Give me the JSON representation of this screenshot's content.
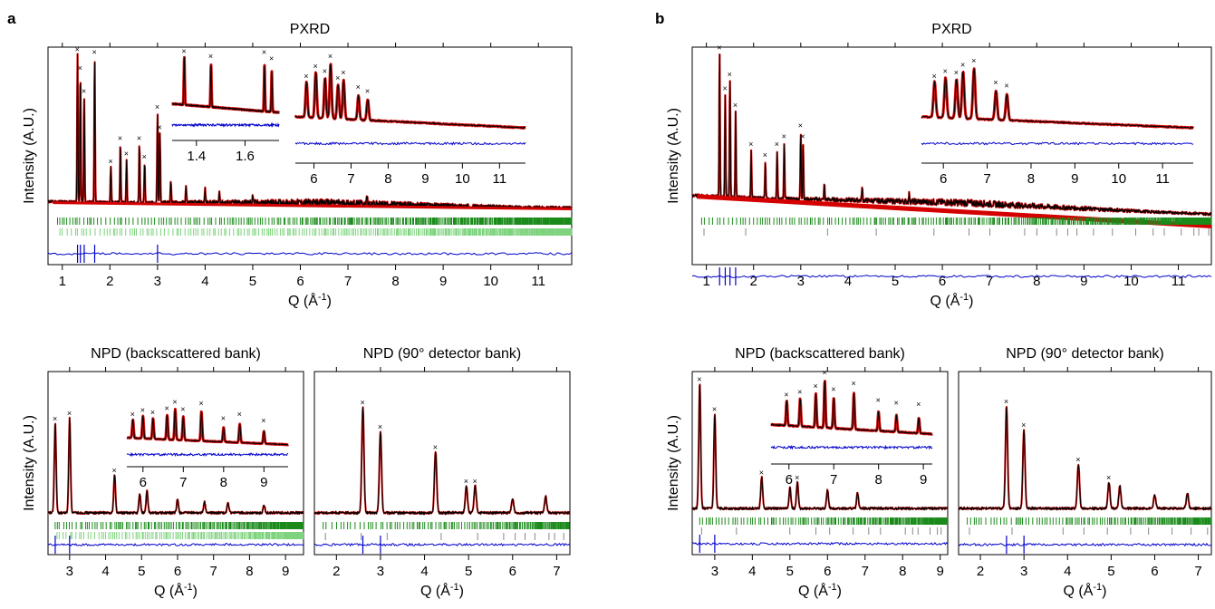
{
  "figure": {
    "panel_letters": [
      "a",
      "b"
    ]
  },
  "colors": {
    "observed": "#d40000",
    "calculated": "#000000",
    "difference": "#0000cc",
    "tick_phase1": "#1a8a1a",
    "tick_phase2": "#7ed37e"
  },
  "chart_data": [
    {
      "id": "a-pxrd",
      "type": "line",
      "title": "PXRD",
      "xlabel": "Q (Å",
      "xlabel_sup": "-1",
      "xlabel_end": ")",
      "ylabel": "Intensity (A.U.)",
      "xlim": [
        0.7,
        11.7
      ],
      "xticks": [
        1,
        2,
        3,
        4,
        5,
        6,
        7,
        8,
        9,
        10,
        11
      ],
      "series": [],
      "peaks": [
        [
          1.32,
          0.95
        ],
        [
          1.38,
          0.83
        ],
        [
          1.46,
          0.68
        ],
        [
          1.68,
          0.93
        ],
        [
          2.02,
          0.23
        ],
        [
          2.22,
          0.38
        ],
        [
          2.35,
          0.28
        ],
        [
          2.62,
          0.38
        ],
        [
          2.73,
          0.26
        ],
        [
          3.0,
          0.58
        ],
        [
          3.05,
          0.45
        ],
        [
          3.28,
          0.15
        ],
        [
          3.6,
          0.1
        ],
        [
          4.0,
          0.09
        ],
        [
          4.3,
          0.07
        ],
        [
          5.0,
          0.05
        ],
        [
          7.4,
          0.05
        ]
      ],
      "background": {
        "start": 0.06,
        "end": 0.02
      },
      "insets": [
        {
          "xlim": [
            1.3,
            1.74
          ],
          "xticks": [
            1.4,
            1.6
          ],
          "peaks": [
            [
              1.35,
              0.92
            ],
            [
              1.46,
              0.82
            ],
            [
              1.68,
              0.9
            ],
            [
              1.71,
              0.78
            ]
          ]
        },
        {
          "xlim": [
            5.5,
            11.7
          ],
          "xticks": [
            6,
            7,
            8,
            9,
            10,
            11
          ],
          "peaks": [
            [
              5.8,
              0.55
            ],
            [
              6.05,
              0.7
            ],
            [
              6.3,
              0.62
            ],
            [
              6.45,
              0.85
            ],
            [
              6.65,
              0.52
            ],
            [
              6.8,
              0.6
            ],
            [
              7.2,
              0.38
            ],
            [
              7.45,
              0.32
            ]
          ]
        }
      ]
    },
    {
      "id": "a-npd-back",
      "type": "line",
      "title": "NPD (backscattered bank)",
      "xlabel": "Q (Å",
      "xlabel_sup": "-1",
      "xlabel_end": ")",
      "ylabel": "Intensity (A.U.)",
      "xlim": [
        2.4,
        9.5
      ],
      "xticks": [
        3,
        4,
        5,
        6,
        7,
        8,
        9
      ],
      "series": [],
      "peaks": [
        [
          2.6,
          0.66
        ],
        [
          3.0,
          0.7
        ],
        [
          4.25,
          0.28
        ],
        [
          4.95,
          0.14
        ],
        [
          5.15,
          0.16
        ],
        [
          6.0,
          0.1
        ],
        [
          6.75,
          0.08
        ],
        [
          7.4,
          0.07
        ],
        [
          8.4,
          0.06
        ]
      ],
      "background": {
        "start": 0.02,
        "end": 0.02
      },
      "insets": [
        {
          "xlim": [
            5.6,
            9.6
          ],
          "xticks": [
            6,
            7,
            8,
            9
          ],
          "peaks": [
            [
              5.75,
              0.45
            ],
            [
              6.0,
              0.55
            ],
            [
              6.25,
              0.5
            ],
            [
              6.6,
              0.6
            ],
            [
              6.8,
              0.75
            ],
            [
              7.0,
              0.58
            ],
            [
              7.45,
              0.72
            ],
            [
              8.0,
              0.35
            ],
            [
              8.4,
              0.45
            ],
            [
              9.0,
              0.3
            ]
          ]
        }
      ]
    },
    {
      "id": "a-npd-90",
      "type": "line",
      "title": "NPD (90° detector bank)",
      "xlabel": "Q (Å",
      "xlabel_sup": "-1",
      "xlabel_end": ")",
      "ylabel": "",
      "xlim": [
        1.5,
        7.3
      ],
      "xticks": [
        2,
        3,
        4,
        5,
        6,
        7
      ],
      "series": [],
      "peaks": [
        [
          2.6,
          0.78
        ],
        [
          3.0,
          0.6
        ],
        [
          4.25,
          0.45
        ],
        [
          4.95,
          0.2
        ],
        [
          5.15,
          0.2
        ],
        [
          6.0,
          0.1
        ],
        [
          6.75,
          0.12
        ]
      ],
      "background": {
        "start": 0.02,
        "end": 0.02
      },
      "insets": []
    },
    {
      "id": "b-pxrd",
      "type": "line",
      "title": "PXRD",
      "xlabel": "Q (Å",
      "xlabel_sup": "-1",
      "xlabel_end": ")",
      "ylabel": "Intensity (A.U.)",
      "xlim": [
        0.7,
        11.7
      ],
      "xticks": [
        1,
        2,
        3,
        4,
        5,
        6,
        7,
        8,
        9,
        10,
        11
      ],
      "series": [],
      "peaks": [
        [
          1.28,
          0.92
        ],
        [
          1.4,
          0.66
        ],
        [
          1.5,
          0.75
        ],
        [
          1.62,
          0.55
        ],
        [
          1.95,
          0.3
        ],
        [
          2.25,
          0.23
        ],
        [
          2.5,
          0.3
        ],
        [
          2.65,
          0.35
        ],
        [
          3.0,
          0.42
        ],
        [
          3.05,
          0.35
        ],
        [
          3.5,
          0.1
        ],
        [
          4.3,
          0.08
        ],
        [
          5.3,
          0.05
        ]
      ],
      "background": {
        "start": 0.1,
        "end": -0.02
      },
      "insets": [
        {
          "xlim": [
            5.5,
            11.7
          ],
          "xticks": [
            6,
            7,
            8,
            9,
            10,
            11
          ],
          "peaks": [
            [
              5.8,
              0.55
            ],
            [
              6.05,
              0.62
            ],
            [
              6.3,
              0.6
            ],
            [
              6.45,
              0.72
            ],
            [
              6.7,
              0.78
            ],
            [
              7.2,
              0.45
            ],
            [
              7.45,
              0.4
            ]
          ]
        }
      ]
    },
    {
      "id": "b-npd-back",
      "type": "line",
      "title": "NPD (backscattered bank)",
      "xlabel": "Q (Å",
      "xlabel_sup": "-1",
      "xlabel_end": ")",
      "ylabel": "Intensity (A.U.)",
      "xlim": [
        2.4,
        9.2
      ],
      "xticks": [
        3,
        4,
        5,
        6,
        7,
        8,
        9
      ],
      "series": [],
      "peaks": [
        [
          2.6,
          0.95
        ],
        [
          3.0,
          0.72
        ],
        [
          4.25,
          0.24
        ],
        [
          5.0,
          0.16
        ],
        [
          5.2,
          0.2
        ],
        [
          6.0,
          0.14
        ],
        [
          6.8,
          0.12
        ]
      ],
      "background": {
        "start": 0.02,
        "end": 0.02
      },
      "insets": [
        {
          "xlim": [
            5.6,
            9.2
          ],
          "xticks": [
            6,
            7,
            8,
            9
          ],
          "peaks": [
            [
              5.95,
              0.45
            ],
            [
              6.25,
              0.5
            ],
            [
              6.6,
              0.6
            ],
            [
              6.8,
              0.85
            ],
            [
              7.0,
              0.55
            ],
            [
              7.45,
              0.65
            ],
            [
              8.0,
              0.35
            ],
            [
              8.4,
              0.3
            ],
            [
              8.9,
              0.28
            ]
          ]
        }
      ]
    },
    {
      "id": "b-npd-90",
      "type": "line",
      "title": "NPD (90° detector bank)",
      "xlabel": "Q (Å",
      "xlabel_sup": "-1",
      "xlabel_end": ")",
      "ylabel": "",
      "xlim": [
        1.5,
        7.3
      ],
      "xticks": [
        2,
        3,
        4,
        5,
        6,
        7
      ],
      "series": [],
      "peaks": [
        [
          2.6,
          0.78
        ],
        [
          3.0,
          0.6
        ],
        [
          4.25,
          0.34
        ],
        [
          4.95,
          0.2
        ],
        [
          5.2,
          0.17
        ],
        [
          6.0,
          0.1
        ],
        [
          6.75,
          0.12
        ]
      ],
      "background": {
        "start": 0.02,
        "end": 0.02
      },
      "insets": []
    }
  ]
}
